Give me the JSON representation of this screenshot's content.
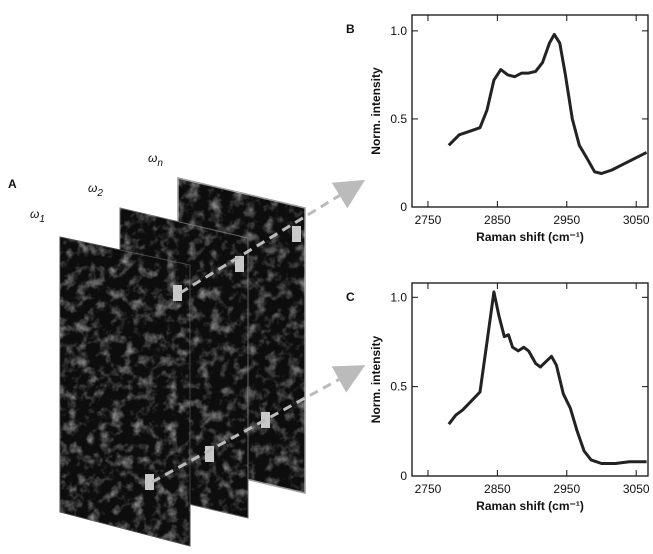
{
  "panel_a": {
    "label": "A",
    "frames": [
      {
        "symbol": "ω",
        "subscript": "1"
      },
      {
        "symbol": "ω",
        "subscript": "2"
      },
      {
        "symbol": "ω",
        "subscript": "n"
      }
    ]
  },
  "chart_data": [
    {
      "type": "line",
      "label": "B",
      "x_label": "Raman shift (cm⁻¹)",
      "y_label": "Norm. intensity",
      "xlim": [
        2727,
        3067
      ],
      "ylim": [
        0,
        1.09
      ],
      "xticks": [
        2750,
        2850,
        2950,
        3050
      ],
      "yticks": [
        0,
        0.5,
        {
          "value": 1,
          "label": "1.0"
        }
      ],
      "series": [
        {
          "color": "#222222",
          "x": [
            2780,
            2795,
            2810,
            2825,
            2835,
            2845,
            2855,
            2865,
            2875,
            2885,
            2895,
            2905,
            2915,
            2925,
            2932,
            2940,
            2948,
            2958,
            2968,
            2980,
            2990,
            3000,
            3015,
            3030,
            3050,
            3065
          ],
          "values": [
            0.35,
            0.41,
            0.43,
            0.45,
            0.55,
            0.72,
            0.78,
            0.75,
            0.74,
            0.76,
            0.76,
            0.77,
            0.82,
            0.93,
            0.98,
            0.93,
            0.75,
            0.5,
            0.35,
            0.27,
            0.2,
            0.19,
            0.21,
            0.24,
            0.28,
            0.31
          ]
        }
      ]
    },
    {
      "type": "line",
      "label": "C",
      "x_label": "Raman shift (cm⁻¹)",
      "y_label": "Norm. intensity",
      "xlim": [
        2727,
        3067
      ],
      "ylim": [
        0,
        1.08
      ],
      "xticks": [
        2750,
        2850,
        2950,
        3050
      ],
      "yticks": [
        0,
        0.5,
        {
          "value": 1,
          "label": "1.0"
        }
      ],
      "series": [
        {
          "color": "#222222",
          "x": [
            2780,
            2790,
            2800,
            2815,
            2825,
            2835,
            2845,
            2852,
            2860,
            2866,
            2872,
            2880,
            2888,
            2895,
            2905,
            2912,
            2920,
            2928,
            2935,
            2945,
            2955,
            2965,
            2975,
            2985,
            3000,
            3020,
            3040,
            3065
          ],
          "values": [
            0.29,
            0.34,
            0.37,
            0.43,
            0.47,
            0.75,
            1.03,
            0.9,
            0.78,
            0.79,
            0.72,
            0.7,
            0.72,
            0.7,
            0.63,
            0.61,
            0.64,
            0.67,
            0.62,
            0.46,
            0.38,
            0.25,
            0.14,
            0.09,
            0.07,
            0.07,
            0.08,
            0.08
          ]
        }
      ]
    }
  ]
}
